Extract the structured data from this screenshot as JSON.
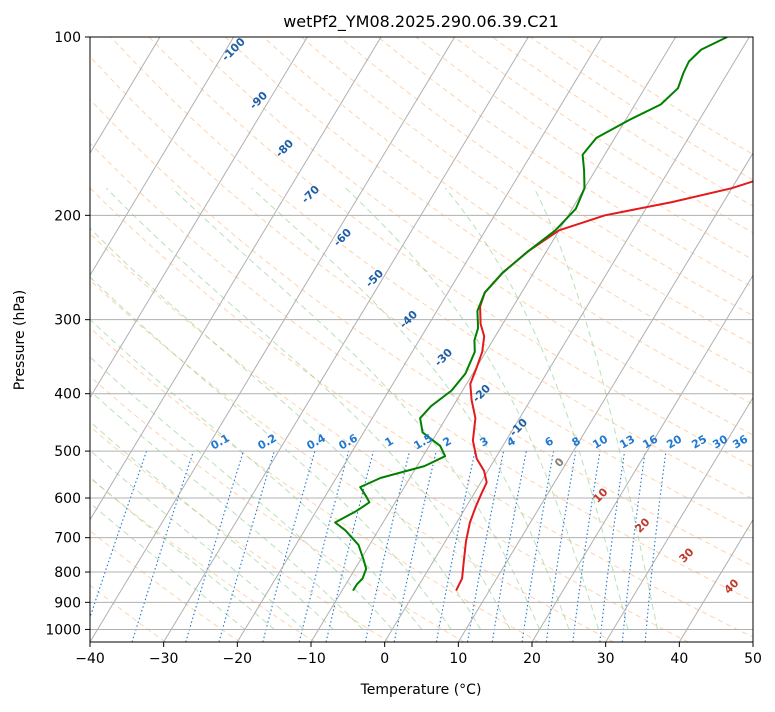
{
  "chart_data": {
    "type": "line",
    "subtype": "skew-t log-p diagram",
    "title": "wetPf2_YM08.2025.290.06.39.C21",
    "xlabel": "Temperature (°C)",
    "ylabel": "Pressure (hPa)",
    "xlim": [
      -40,
      50
    ],
    "ylim": [
      1050,
      100
    ],
    "y_scale": "log",
    "grid": true,
    "x_ticks": [
      "−40",
      "−30",
      "−20",
      "−10",
      "0",
      "10",
      "20",
      "30",
      "40",
      "50"
    ],
    "y_ticks": [
      "100",
      "200",
      "300",
      "400",
      "500",
      "600",
      "700",
      "800",
      "900",
      "1000"
    ],
    "colors": {
      "temperature": "#e31a1c",
      "dewpoint": "#008000",
      "dry_adiabat": "#fdae6b",
      "moist_adiabat": "#74c476",
      "mixing_ratio": "#1f78d1",
      "isotherm_label": "#1f5fa8",
      "warm_label": "#c0392b",
      "zero_label": "#808080"
    },
    "series": [
      {
        "key": "temperature",
        "points": [
          [
            5.5,
            860
          ],
          [
            5.3,
            820
          ],
          [
            4.2,
            770
          ],
          [
            2.8,
            710
          ],
          [
            1.8,
            660
          ],
          [
            1.3,
            620
          ],
          [
            1.0,
            590
          ],
          [
            0.8,
            565
          ],
          [
            -0.5,
            540
          ],
          [
            -2.5,
            515
          ],
          [
            -4.5,
            480
          ],
          [
            -6.0,
            440
          ],
          [
            -8.0,
            410
          ],
          [
            -9.5,
            385
          ],
          [
            -10.0,
            360
          ],
          [
            -10.5,
            340
          ],
          [
            -11.5,
            320
          ],
          [
            -13.0,
            305
          ],
          [
            -14.5,
            285
          ],
          [
            -15.0,
            270
          ],
          [
            -14.2,
            250
          ],
          [
            -12.5,
            230
          ],
          [
            -10.0,
            212
          ],
          [
            -5.0,
            200
          ],
          [
            3.0,
            190
          ],
          [
            10.0,
            180
          ],
          [
            15.0,
            170
          ],
          [
            17.5,
            160
          ],
          [
            20.0,
            145
          ],
          [
            22.0,
            133
          ],
          [
            25.5,
            123
          ],
          [
            29.5,
            115
          ],
          [
            33.0,
            108
          ],
          [
            35.8,
            100
          ]
        ]
      },
      {
        "key": "dewpoint",
        "points": [
          [
            -8.5,
            860
          ],
          [
            -8.5,
            840
          ],
          [
            -8.2,
            820
          ],
          [
            -8.5,
            790
          ],
          [
            -9.7,
            760
          ],
          [
            -11.5,
            720
          ],
          [
            -14.5,
            680
          ],
          [
            -16.5,
            660
          ],
          [
            -14.5,
            630
          ],
          [
            -13.5,
            610
          ],
          [
            -14.5,
            595
          ],
          [
            -16.0,
            575
          ],
          [
            -14.0,
            555
          ],
          [
            -9.0,
            530
          ],
          [
            -7.0,
            510
          ],
          [
            -8.5,
            490
          ],
          [
            -12.0,
            465
          ],
          [
            -13.5,
            440
          ],
          [
            -13.0,
            420
          ],
          [
            -11.5,
            395
          ],
          [
            -11.0,
            370
          ],
          [
            -11.5,
            340
          ],
          [
            -12.5,
            325
          ],
          [
            -13.0,
            310
          ],
          [
            -14.5,
            290
          ],
          [
            -15.0,
            270
          ],
          [
            -14.2,
            250
          ],
          [
            -12.5,
            230
          ],
          [
            -10.5,
            212
          ],
          [
            -9.5,
            195
          ],
          [
            -10.0,
            180
          ],
          [
            -11.5,
            168
          ],
          [
            -13.0,
            158
          ],
          [
            -12.5,
            148
          ],
          [
            -9.5,
            138
          ],
          [
            -6.5,
            130
          ],
          [
            -5.5,
            122
          ],
          [
            -6.0,
            115
          ],
          [
            -6.2,
            110
          ],
          [
            -5.5,
            105
          ],
          [
            -3.0,
            100
          ]
        ]
      }
    ],
    "dry_adiabat_labels": [
      "-100",
      "-90",
      "-80",
      "-70",
      "-60",
      "-50",
      "-40",
      "-30",
      "-20",
      "-10"
    ],
    "isotherm_labels_warm": [
      "0",
      "10",
      "20",
      "30",
      "40"
    ],
    "mixing_ratio_labels": [
      "0.1",
      "0.2",
      "0.4",
      "0.6",
      "1",
      "1.5",
      "2",
      "3",
      "4",
      "6",
      "8",
      "10",
      "13",
      "16",
      "20",
      "25",
      "30",
      "36"
    ]
  }
}
